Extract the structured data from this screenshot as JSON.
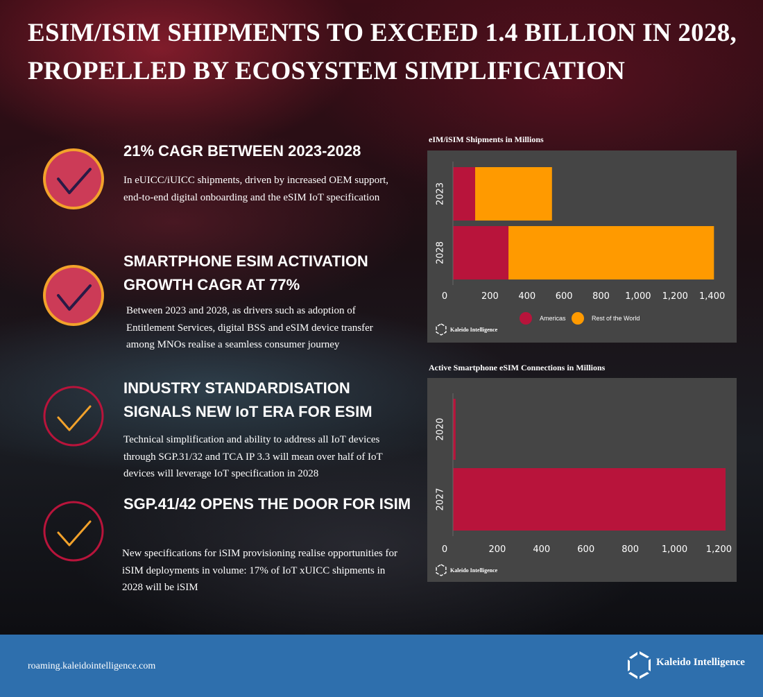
{
  "title": "ESIM/ISIM SHIPMENTS TO EXCEED 1.4 BILLION IN 2028, PROPELLED BY ECOSYSTEM SIMPLIFICATION",
  "items": [
    {
      "heading": "21% CAGR BETWEEN 2023-2028",
      "text": "In eUICC/iUICC shipments, driven by increased OEM support, end-to-end digital onboarding and the eSIM IoT specification",
      "icon": "check-circle-filled-icon"
    },
    {
      "heading": "SMARTPHONE ESIM ACTIVATION GROWTH CAGR AT 77%",
      "text": "Between 2023 and 2028, as drivers such as adoption of Entitlement Services, digital BSS and eSIM device transfer among MNOs realise a seamless consumer journey",
      "icon": "check-circle-filled-icon"
    },
    {
      "heading": "INDUSTRY STANDARDISATION SIGNALS NEW IoT ERA FOR ESIM",
      "text": "Technical simplification and ability to address all IoT devices through SGP.31/32 and TCA IP 3.3  will mean over half of IoT devices will leverage IoT specification in 2028",
      "icon": "check-circle-outline-icon"
    },
    {
      "heading": "SGP.41/42 OPENS THE DOOR FOR ISIM",
      "text": "New specifications for iSIM provisioning realise opportunities for iSIM deployments in volume: 17% of IoT xUICC shipments in 2028 will be iSIM",
      "icon": "check-circle-outline-icon"
    }
  ],
  "colors": {
    "americas": "#b8143b",
    "rest_of_world": "#ff9a00",
    "panel": "#454545",
    "footer": "#2e6fad"
  },
  "chart_data": [
    {
      "type": "bar",
      "orientation": "horizontal",
      "stacked": true,
      "title": "eIM/iSIM Shipments in Millions",
      "categories": [
        "2023",
        "2028"
      ],
      "series": [
        {
          "name": "Americas",
          "values": [
            120,
            300
          ]
        },
        {
          "name": "Rest of the World",
          "values": [
            415,
            1110
          ]
        }
      ],
      "xlim": [
        0,
        1480
      ],
      "x_ticks": [
        0,
        200,
        400,
        600,
        800,
        1000,
        1200,
        1400
      ],
      "x_tick_labels": [
        "0",
        "200",
        "400",
        "600",
        "800",
        "1,000",
        "1,200",
        "1,400"
      ],
      "legend": "bottom",
      "watermark": "Kaleido Intelligence"
    },
    {
      "type": "bar",
      "orientation": "horizontal",
      "title": "Active Smartphone eSIM Connections in Millions",
      "categories": [
        "2020",
        "2027"
      ],
      "series": [
        {
          "values": [
            12,
            1230
          ]
        }
      ],
      "xlim": [
        0,
        1230
      ],
      "x_ticks": [
        0,
        200,
        400,
        600,
        800,
        1000,
        1200
      ],
      "x_tick_labels": [
        "0",
        "200",
        "400",
        "600",
        "800",
        "1,000",
        "1,200"
      ],
      "watermark": "Kaleido Intelligence"
    }
  ],
  "footer": {
    "url": "roaming.kaleidointelligence.com",
    "brand": "Kaleido Intelligence"
  }
}
